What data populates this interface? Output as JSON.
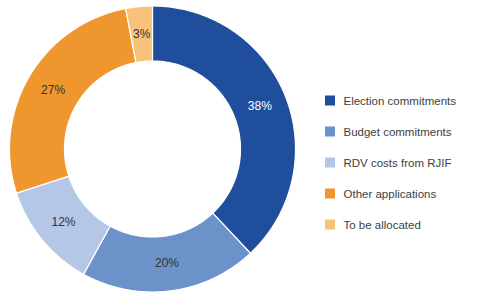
{
  "chart_data": {
    "type": "donut",
    "categories": [
      "Election commitments",
      "Budget commitments",
      "RDV costs from RJIF",
      "Other applications",
      "To be allocated"
    ],
    "values": [
      38,
      20,
      12,
      27,
      3
    ],
    "value_labels": [
      "38%",
      "20%",
      "12%",
      "27%",
      "3%"
    ],
    "colors": [
      "#1f4e9c",
      "#6b93c9",
      "#b4c7e7",
      "#f0962f",
      "#f7c27a"
    ],
    "data_labels": true,
    "legend": "right"
  }
}
